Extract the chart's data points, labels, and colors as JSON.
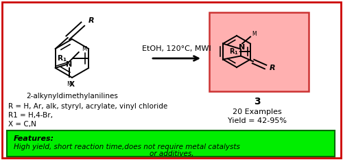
{
  "outer_border_color": "#cc0000",
  "background_color": "#ffffff",
  "reaction_condition": "EtOH, 120°C, MWI",
  "compound_label": "3",
  "examples": "20 Examples",
  "yield_text": "Yield = 42-95%",
  "starting_material_label": "2-alkynyldimethylanilines",
  "r_groups": "R = H, Ar, alk, styryl, acrylate, vinyl chloride",
  "r1_groups": "R1 = H,4-Br,",
  "x_groups": "X = C,N",
  "features_title": "Features:",
  "features_line1": "High yield, short reaction time,does not require metal catalysts",
  "features_line2": "or additives,",
  "features_bg": "#00ee00",
  "product_box_color": "#ffb0b0",
  "green_box_border": "#006600",
  "lw": 1.4
}
